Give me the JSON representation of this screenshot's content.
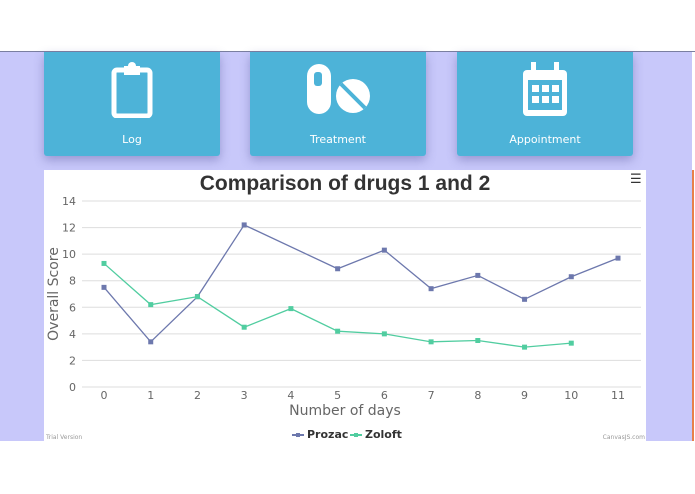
{
  "nav": [
    {
      "label": "Log",
      "icon": "clipboard-icon"
    },
    {
      "label": "Treatment",
      "icon": "pills-icon"
    },
    {
      "label": "Appointment",
      "icon": "calendar-icon"
    }
  ],
  "chart_data": {
    "type": "line",
    "title": "Comparison of drugs 1 and 2",
    "xlabel": "Number of days",
    "ylabel": "Overall Score",
    "xlim": [
      0,
      11
    ],
    "ylim": [
      0,
      14
    ],
    "xticks": [
      0,
      1,
      2,
      3,
      4,
      5,
      6,
      7,
      8,
      9,
      10,
      11
    ],
    "yticks": [
      0,
      2,
      4,
      6,
      8,
      10,
      12,
      14
    ],
    "grid": true,
    "legend_placement": "bottom",
    "series": [
      {
        "name": "Prozac",
        "color": "#6d78ad",
        "x": [
          0,
          1,
          2,
          3,
          5,
          6,
          7,
          8,
          9,
          10,
          11
        ],
        "y": [
          7.5,
          3.4,
          6.8,
          12.2,
          8.9,
          10.3,
          7.4,
          8.4,
          6.6,
          8.3,
          9.7
        ]
      },
      {
        "name": "Zoloft",
        "color": "#51cda0",
        "x": [
          0,
          1,
          2,
          3,
          4,
          5,
          6,
          7,
          8,
          9,
          10
        ],
        "y": [
          9.3,
          6.2,
          6.8,
          4.5,
          5.9,
          4.2,
          4.0,
          3.4,
          3.5,
          3.0,
          3.3
        ]
      }
    ],
    "watermark_left": "Trial Version",
    "watermark_right": "CanvasJS.com"
  },
  "menu_icon": "hamburger-icon"
}
